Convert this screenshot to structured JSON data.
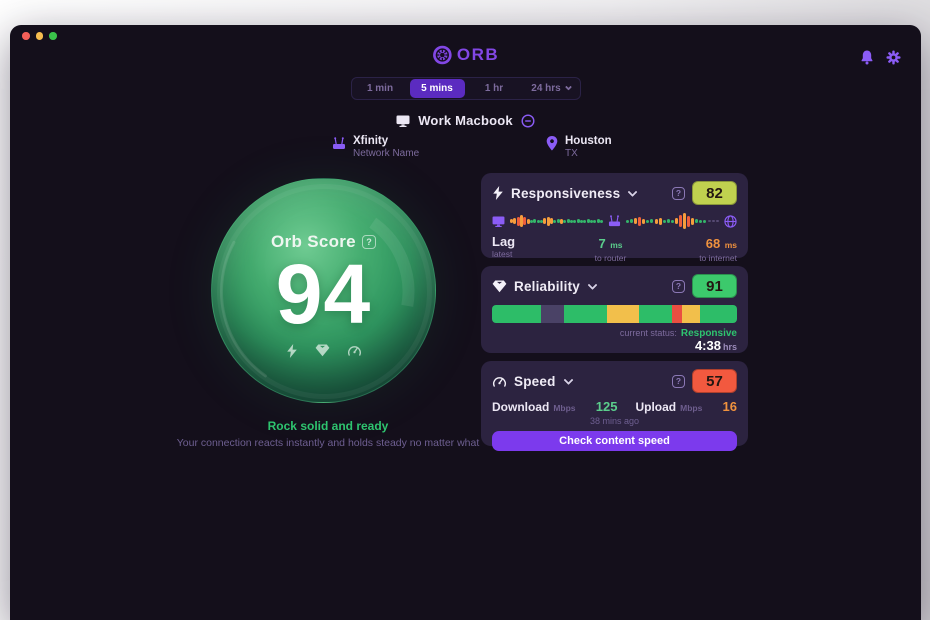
{
  "ui": {
    "help": "?"
  },
  "window_controls": {
    "colors": [
      "#f45f58",
      "#f6bd4f",
      "#3ac24a"
    ]
  },
  "header": {
    "logo": "ORB"
  },
  "tabs": {
    "items": [
      {
        "label": "1 min",
        "active": false
      },
      {
        "label": "5 mins",
        "active": true
      },
      {
        "label": "1 hr",
        "active": false
      },
      {
        "label": "24 hrs",
        "active": false,
        "dropdown": true
      }
    ]
  },
  "device": {
    "name": "Work Macbook"
  },
  "network": {
    "name": "Xfinity",
    "sublabel": "Network Name"
  },
  "location": {
    "city": "Houston",
    "region": "TX"
  },
  "orb": {
    "label": "Orb Score",
    "score": "94",
    "status_title": "Rock solid and ready",
    "status_subtitle": "Your connection reacts instantly and holds steady no matter what"
  },
  "responsiveness": {
    "title": "Responsiveness",
    "score": "82",
    "score_bg": "#c0d14f",
    "lag_label": "Lag",
    "lag_sub": "latest",
    "router_value": "7",
    "router_unit": "ms",
    "router_sub": "to router",
    "internet_value": "68",
    "internet_unit": "ms",
    "internet_sub": "to internet",
    "waveform": {
      "colors": {
        "g": "#34b56a",
        "o": "#f59d3d",
        "r": "#ef5f3b",
        "d": "#564a72"
      },
      "segment_a": [
        [
          "o",
          4
        ],
        [
          "o",
          6
        ],
        [
          "r",
          9
        ],
        [
          "o",
          12
        ],
        [
          "r",
          8
        ],
        [
          "o",
          5
        ],
        [
          "g",
          3
        ],
        [
          "g",
          4
        ],
        [
          "g",
          3
        ],
        [
          "g",
          3
        ],
        [
          "o",
          6
        ],
        [
          "o",
          9
        ],
        [
          "o",
          6
        ],
        [
          "g",
          3
        ],
        [
          "g",
          4
        ],
        [
          "o",
          5
        ],
        [
          "g",
          3
        ],
        [
          "g",
          4
        ],
        [
          "g",
          3
        ],
        [
          "g",
          3
        ],
        [
          "g",
          4
        ],
        [
          "g",
          3
        ],
        [
          "g",
          3
        ],
        [
          "g",
          4
        ],
        [
          "g",
          3
        ],
        [
          "g",
          3
        ],
        [
          "g",
          4
        ],
        [
          "g",
          3
        ]
      ],
      "segment_b": [
        [
          "g",
          3
        ],
        [
          "g",
          4
        ],
        [
          "o",
          6
        ],
        [
          "r",
          9
        ],
        [
          "o",
          5
        ],
        [
          "g",
          3
        ],
        [
          "g",
          4
        ],
        [
          "o",
          5
        ],
        [
          "o",
          7
        ],
        [
          "g",
          3
        ],
        [
          "g",
          4
        ],
        [
          "g",
          3
        ],
        [
          "o",
          6
        ],
        [
          "r",
          12
        ],
        [
          "o",
          16
        ],
        [
          "r",
          11
        ],
        [
          "o",
          7
        ],
        [
          "g",
          4
        ],
        [
          "g",
          3
        ],
        [
          "g",
          3
        ],
        [
          "d",
          2
        ],
        [
          "d",
          2
        ],
        [
          "d",
          2
        ]
      ]
    }
  },
  "reliability": {
    "title": "Reliability",
    "score": "91",
    "score_bg": "#3cc96c",
    "status_label": "current status:",
    "status_value": "Responsive",
    "duration_value": "4:38",
    "duration_unit": "hrs",
    "segments": [
      {
        "color": "#2dbd68",
        "pct": 20
      },
      {
        "color": "#4a4266",
        "pct": 9.5
      },
      {
        "color": "#2dbd68",
        "pct": 17.5
      },
      {
        "color": "#f2bf4b",
        "pct": 13
      },
      {
        "color": "#2dbd68",
        "pct": 13.5
      },
      {
        "color": "#ea4f41",
        "pct": 4
      },
      {
        "color": "#f2bf4b",
        "pct": 7.5
      },
      {
        "color": "#2dbd68",
        "pct": 15
      }
    ]
  },
  "speed": {
    "title": "Speed",
    "score": "57",
    "score_bg": "#f2593f",
    "download_label": "Download",
    "download_unit": "Mbps",
    "download_value": "125",
    "upload_label": "Upload",
    "upload_unit": "Mbps",
    "upload_value": "16",
    "updated": "38 mins ago",
    "button_label": "Check content speed"
  }
}
